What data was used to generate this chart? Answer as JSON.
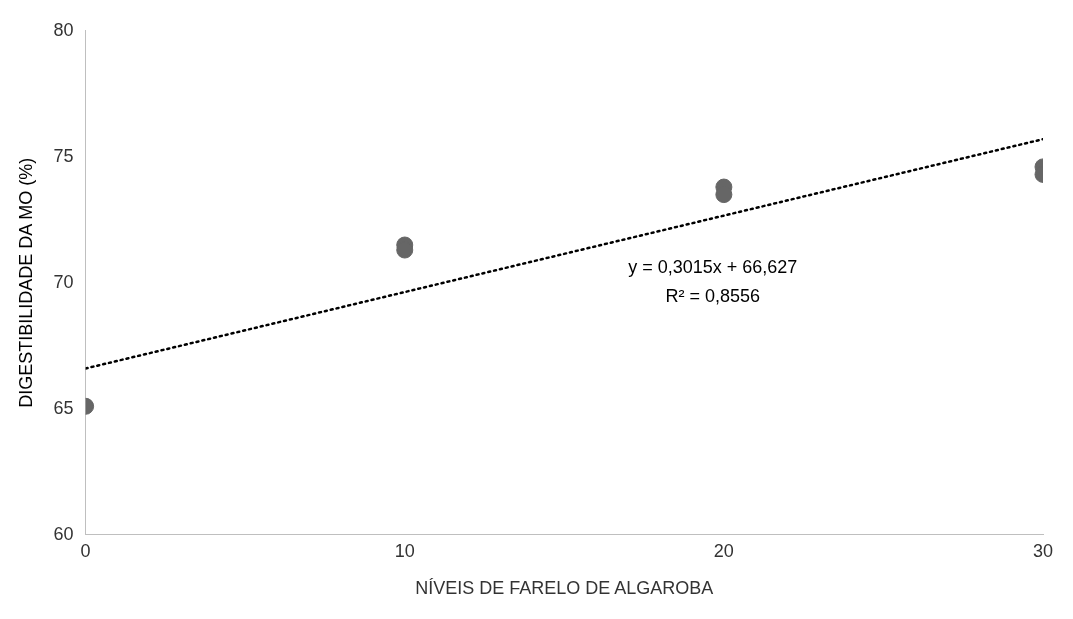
{
  "chart_data": {
    "type": "scatter",
    "xlabel": "NÍVEIS DE FARELO DE ALGAROBA",
    "ylabel": "DIGESTIBILIDADE DA MO (%)",
    "series": [
      {
        "type": "scatter",
        "color": "#666666",
        "marker": "circle",
        "x": [
          0,
          10,
          10,
          20,
          20,
          30,
          30
        ],
        "values": [
          65.1,
          71.5,
          71.3,
          73.8,
          73.5,
          74.6,
          74.3
        ]
      },
      {
        "type": "line",
        "color": "#000000",
        "marker": "none",
        "line_style": "dotted",
        "x": [
          0,
          30
        ],
        "values": [
          66.6,
          75.7
        ]
      }
    ],
    "annotations": [
      "y = 0,3015x + 66,627",
      "R² = 0,8556"
    ],
    "xlim": [
      0,
      30
    ],
    "xticks": [
      0,
      10,
      20,
      30
    ],
    "ylim": [
      60,
      80
    ],
    "yticks": [
      60,
      65,
      70,
      75,
      80
    ],
    "grid": false,
    "legend": false
  }
}
